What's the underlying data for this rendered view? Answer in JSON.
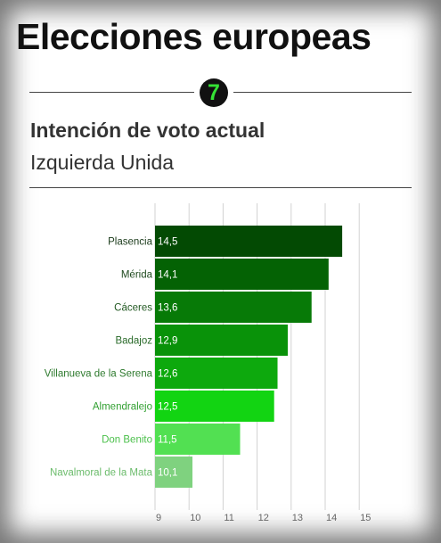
{
  "header": {
    "title": "Elecciones europeas",
    "badge": "7"
  },
  "chart_data": {
    "type": "bar",
    "orientation": "horizontal",
    "title": "Intención de voto actual",
    "subtitle": "Izquierda Unida",
    "categories": [
      "Plasencia",
      "Mérida",
      "Cáceres",
      "Badajoz",
      "Villanueva de la Serena",
      "Almendralejo",
      "Don Benito",
      "Navalmoral de la Mata"
    ],
    "values": [
      14.5,
      14.1,
      13.6,
      12.9,
      12.6,
      12.5,
      11.5,
      10.1
    ],
    "value_labels": [
      "14,5",
      "14,1",
      "13,6",
      "12,9",
      "12,6",
      "12,5",
      "11,5",
      "10,1"
    ],
    "xlim": [
      9,
      15
    ],
    "xticks": [
      9,
      10,
      11,
      12,
      13,
      14,
      15
    ],
    "grid": true,
    "bar_colors": [
      "#034a03",
      "#046204",
      "#077a07",
      "#099209",
      "#0da90d",
      "#12d412",
      "#52e052",
      "#7fd27f"
    ],
    "label_colors": [
      "#1a3a1a",
      "#1f4a1f",
      "#245a24",
      "#296a29",
      "#2e7a2e",
      "#32a032",
      "#4cc04c",
      "#6cbc6c"
    ]
  }
}
